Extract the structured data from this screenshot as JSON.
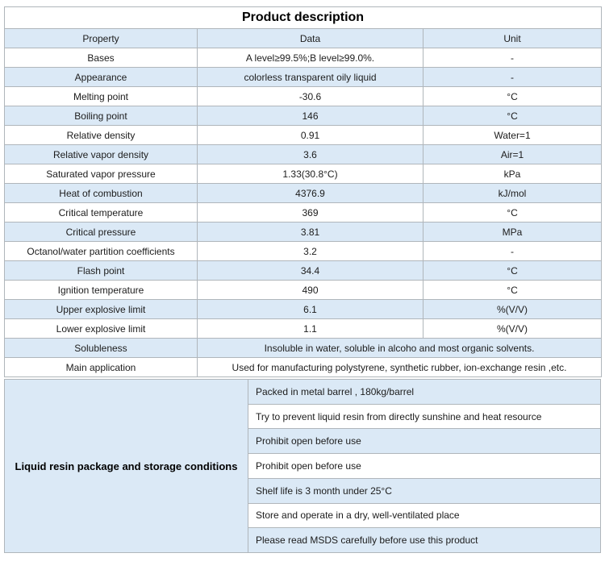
{
  "title": "Product description",
  "colors": {
    "row_highlight": "#dbe9f6",
    "border": "#b0b6bb"
  },
  "table": {
    "headers": {
      "property": "Property",
      "data": "Data",
      "unit": "Unit"
    },
    "rows": [
      {
        "property": "Bases",
        "data": "A level≥99.5%;B level≥99.0%.",
        "unit": "-"
      },
      {
        "property": "Appearance",
        "data": "colorless transparent oily liquid",
        "unit": "-"
      },
      {
        "property": "Melting point",
        "data": "-30.6",
        "unit": "°C"
      },
      {
        "property": "Boiling point",
        "data": "146",
        "unit": "°C"
      },
      {
        "property": "Relative density",
        "data": "0.91",
        "unit": "Water=1"
      },
      {
        "property": "Relative vapor density",
        "data": "3.6",
        "unit": "Air=1"
      },
      {
        "property": "Saturated vapor pressure",
        "data": "1.33(30.8°C)",
        "unit": "kPa"
      },
      {
        "property": "Heat of combustion",
        "data": "4376.9",
        "unit": "kJ/mol"
      },
      {
        "property": "Critical temperature",
        "data": "369",
        "unit": "°C"
      },
      {
        "property": "Critical pressure",
        "data": "3.81",
        "unit": "MPa"
      },
      {
        "property": "Octanol/water partition coefficients",
        "data": "3.2",
        "unit": "-"
      },
      {
        "property": "Flash point",
        "data": "34.4",
        "unit": "°C"
      },
      {
        "property": "Ignition temperature",
        "data": "490",
        "unit": "°C"
      },
      {
        "property": "Upper explosive limit",
        "data": "6.1",
        "unit": "%(V/V)"
      },
      {
        "property": "Lower explosive limit",
        "data": "1.1",
        "unit": "%(V/V)"
      }
    ],
    "merged_rows": [
      {
        "property": "Solubleness",
        "data": "Insoluble in water, soluble in alcoho and most organic solvents."
      },
      {
        "property": "Main application",
        "data": "Used for manufacturing polystyrene, synthetic rubber, ion-exchange resin ,etc."
      }
    ]
  },
  "package_section": {
    "label": "Liquid resin package and storage conditions",
    "items": [
      "Packed in metal barrel , 180kg/barrel",
      "Try to prevent liquid resin from directly sunshine and heat resource",
      "Prohibit open before use",
      "Prohibit open before use",
      "Shelf life is 3 month under 25°C",
      "Store and operate in a dry, well-ventilated place",
      "Please read MSDS carefully before use this product"
    ]
  }
}
